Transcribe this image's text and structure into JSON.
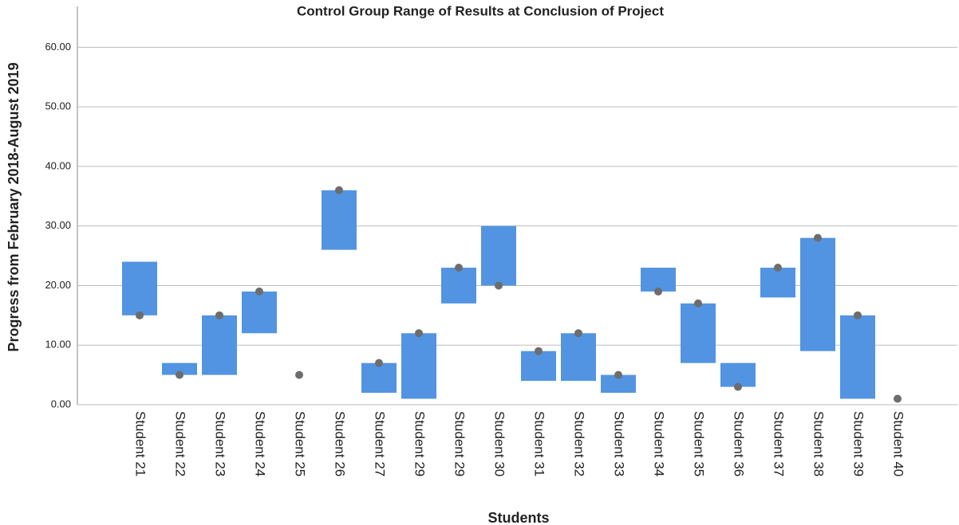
{
  "chart_data": {
    "type": "floating-bar",
    "title": "Control Group Range of Results at Conclusion of Project",
    "y_label": "Progress from February 2018-August 2019",
    "x_label": "Students",
    "categories": [
      "Student 21",
      "Student 22",
      "Student 23",
      "Student 24",
      "Student 25",
      "Student 26",
      "Student 27",
      "Student 29",
      "Student 29",
      "Student 30",
      "Student 31",
      "Student 32",
      "Student 33",
      "Student 34",
      "Student 35",
      "Student 36",
      "Student 37",
      "Student 38",
      "Student 39",
      "Student 40"
    ],
    "low": [
      15,
      5,
      5,
      12,
      null,
      26,
      2,
      1,
      17,
      20,
      4,
      4,
      2,
      19,
      7,
      3,
      18,
      9,
      1,
      null
    ],
    "high": [
      24,
      7,
      15,
      19,
      null,
      36,
      7,
      12,
      23,
      30,
      9,
      12,
      5,
      23,
      17,
      7,
      23,
      28,
      15,
      null
    ],
    "values": [
      15,
      5,
      15,
      19,
      5,
      36,
      7,
      12,
      23,
      20,
      9,
      12,
      5,
      19,
      17,
      3,
      23,
      28,
      15,
      1
    ],
    "bar_color": "#5294e2",
    "dot_color": "#6d6d6d",
    "ylim": [
      0,
      67
    ],
    "yticks": [
      {
        "value": 0,
        "label": "0.00"
      },
      {
        "value": 10,
        "label": "10.00"
      },
      {
        "value": 20,
        "label": "20.00"
      },
      {
        "value": 30,
        "label": "30.00"
      },
      {
        "value": 40,
        "label": "40.00"
      },
      {
        "value": 50,
        "label": "50.00"
      },
      {
        "value": 60,
        "label": "60.00"
      }
    ],
    "grid": true
  }
}
